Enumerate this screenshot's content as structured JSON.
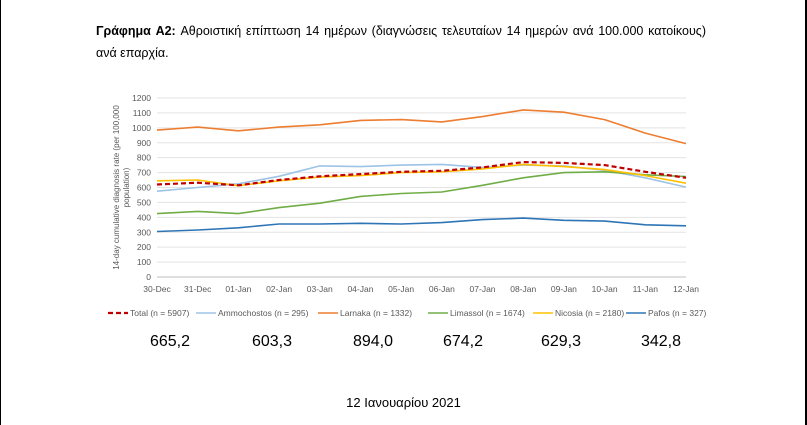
{
  "caption": {
    "label": "Γράφημα A2:",
    "text": " Αθροιστική επίπτωση 14 ημέρων (διαγνώσεις τελευταίων 14 ημερών ανά 100.000 κατοίκους) ανά επαρχία."
  },
  "chart_data": {
    "type": "line",
    "title": "",
    "xlabel": "",
    "ylabel": "14-day cumulative diagnosis rate (per 100,000 population)",
    "ylim": [
      0,
      1200
    ],
    "yticks": [
      0,
      100,
      200,
      300,
      400,
      500,
      600,
      700,
      800,
      900,
      1000,
      1100,
      1200
    ],
    "grid": true,
    "legend_position": "bottom",
    "categories": [
      "30-Dec",
      "31-Dec",
      "01-Jan",
      "02-Jan",
      "03-Jan",
      "04-Jan",
      "05-Jan",
      "06-Jan",
      "07-Jan",
      "08-Jan",
      "09-Jan",
      "10-Jan",
      "11-Jan",
      "12-Jan"
    ],
    "series": [
      {
        "name": "Total (n = 5907)",
        "color": "#c00000",
        "dashed": true,
        "values": [
          620,
          632,
          615,
          650,
          675,
          690,
          705,
          712,
          735,
          770,
          765,
          750,
          705,
          665
        ]
      },
      {
        "name": "Ammochostos (n = 295)",
        "color": "#9dc3e6",
        "dashed": false,
        "values": [
          575,
          600,
          625,
          675,
          745,
          740,
          750,
          755,
          735,
          750,
          745,
          715,
          665,
          603
        ]
      },
      {
        "name": "Larnaka (n = 1332)",
        "color": "#ed7d31",
        "dashed": false,
        "values": [
          985,
          1005,
          980,
          1005,
          1020,
          1050,
          1055,
          1040,
          1075,
          1120,
          1105,
          1055,
          965,
          894
        ]
      },
      {
        "name": "Limassol (n = 1674)",
        "color": "#70ad47",
        "dashed": false,
        "values": [
          425,
          440,
          425,
          465,
          495,
          540,
          560,
          570,
          615,
          665,
          700,
          705,
          685,
          674
        ]
      },
      {
        "name": "Nicosia (n = 2180)",
        "color": "#ffc000",
        "dashed": false,
        "values": [
          645,
          650,
          612,
          645,
          670,
          680,
          700,
          705,
          725,
          755,
          740,
          720,
          680,
          629
        ]
      },
      {
        "name": "Pafos (n = 327)",
        "color": "#2e75b6",
        "dashed": false,
        "values": [
          305,
          315,
          330,
          355,
          355,
          360,
          355,
          365,
          385,
          395,
          380,
          375,
          350,
          343
        ]
      }
    ]
  },
  "values_row": [
    "665,2",
    "603,3",
    "894,0",
    "674,2",
    "629,3",
    "342,8"
  ],
  "date": "12 Ιανουαρίου 2021"
}
